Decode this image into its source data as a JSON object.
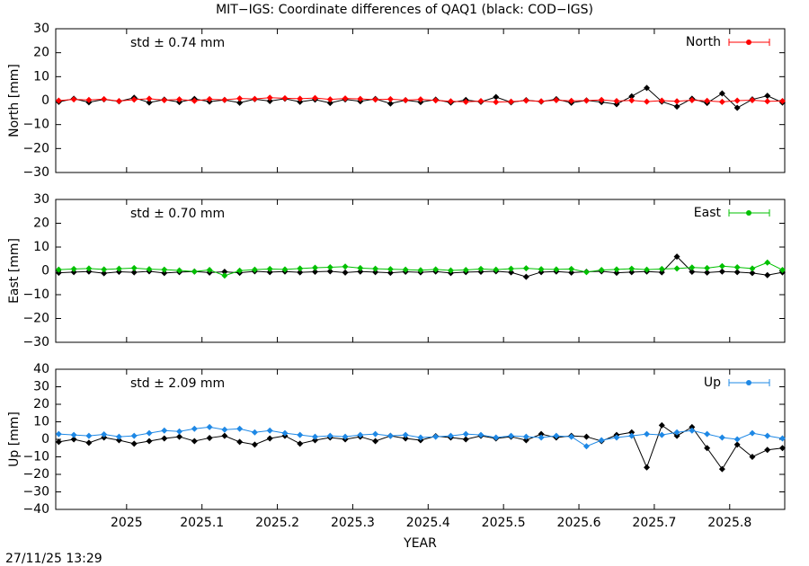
{
  "title": "MIT−IGS: Coordinate differences of QAQ1 (black: COD−IGS)",
  "timestamp": "27/11/25 13:29",
  "chart_data": [
    {
      "type": "line",
      "ylabel": "North [mm]",
      "annotation": "std ± 0.74 mm",
      "annotation_color": "#ff0000",
      "legend": "top-right",
      "x": [
        2024.91,
        2024.93,
        2024.95,
        2024.97,
        2024.99,
        2025.01,
        2025.03,
        2025.05,
        2025.07,
        2025.09,
        2025.11,
        2025.13,
        2025.15,
        2025.17,
        2025.19,
        2025.21,
        2025.23,
        2025.25,
        2025.27,
        2025.29,
        2025.31,
        2025.33,
        2025.35,
        2025.37,
        2025.39,
        2025.41,
        2025.43,
        2025.45,
        2025.47,
        2025.49,
        2025.51,
        2025.53,
        2025.55,
        2025.57,
        2025.59,
        2025.61,
        2025.63,
        2025.65,
        2025.67,
        2025.69,
        2025.71,
        2025.73,
        2025.75,
        2025.77,
        2025.79,
        2025.81,
        2025.83,
        2025.85,
        2025.87
      ],
      "series": [
        {
          "color": "#000000",
          "values": [
            -0.5,
            0.8,
            -0.7,
            0.5,
            -0.3,
            1.2,
            -0.8,
            0.4,
            -0.6,
            0.7,
            -0.4,
            0.3,
            -0.9,
            0.6,
            -0.2,
            0.8,
            -0.5,
            0.4,
            -1.0,
            0.5,
            -0.3,
            0.7,
            -1.2,
            0.2,
            -0.6,
            0.4,
            -0.8,
            0.3,
            -0.5,
            1.5,
            -0.7,
            0.2,
            -0.4,
            0.6,
            -0.9,
            0.1,
            -0.6,
            -1.5,
            1.8,
            5.3,
            -0.4,
            -2.5,
            0.8,
            -1.0,
            3.0,
            -3.0,
            0.5,
            2.0,
            -0.8
          ]
        },
        {
          "name": "North",
          "color": "#ff0000",
          "values": [
            0.0,
            0.5,
            0.3,
            0.6,
            -0.2,
            0.4,
            0.8,
            0.2,
            0.5,
            -0.1,
            0.6,
            0.3,
            0.9,
            0.7,
            1.2,
            1.0,
            0.8,
            1.1,
            0.5,
            0.9,
            0.7,
            0.4,
            0.6,
            0.2,
            0.5,
            0.1,
            -0.3,
            -0.5,
            -0.2,
            -0.6,
            -0.4,
            0.0,
            -0.3,
            0.2,
            -0.1,
            0.0,
            0.3,
            -0.2,
            0.1,
            -0.4,
            0.0,
            -0.3,
            0.2,
            -0.1,
            -0.5,
            0.0,
            0.2,
            -0.3,
            -0.2
          ]
        }
      ],
      "xlim": [
        2024.906,
        2025.873
      ],
      "xticks": [
        2025,
        2025.1,
        2025.2,
        2025.3,
        2025.4,
        2025.5,
        2025.6,
        2025.7,
        2025.8
      ],
      "ylim": [
        -30,
        30
      ],
      "yticks": [
        {
          "value": -30,
          "label": "−30"
        },
        {
          "value": -20,
          "label": "−20"
        },
        {
          "value": -10,
          "label": "−10"
        },
        0,
        10,
        20,
        30
      ]
    },
    {
      "type": "line",
      "ylabel": "East [mm]",
      "annotation": "std ± 0.70 mm",
      "annotation_color": "#00c000",
      "legend": "top-right",
      "x": [
        2024.91,
        2024.93,
        2024.95,
        2024.97,
        2024.99,
        2025.01,
        2025.03,
        2025.05,
        2025.07,
        2025.09,
        2025.11,
        2025.13,
        2025.15,
        2025.17,
        2025.19,
        2025.21,
        2025.23,
        2025.25,
        2025.27,
        2025.29,
        2025.31,
        2025.33,
        2025.35,
        2025.37,
        2025.39,
        2025.41,
        2025.43,
        2025.45,
        2025.47,
        2025.49,
        2025.51,
        2025.53,
        2025.55,
        2025.57,
        2025.59,
        2025.61,
        2025.63,
        2025.65,
        2025.67,
        2025.69,
        2025.71,
        2025.73,
        2025.75,
        2025.77,
        2025.79,
        2025.81,
        2025.83,
        2025.85,
        2025.87
      ],
      "series": [
        {
          "color": "#000000",
          "values": [
            -0.8,
            -0.5,
            -0.3,
            -1.0,
            -0.4,
            -0.6,
            -0.2,
            -0.9,
            -0.5,
            -0.3,
            -0.7,
            -0.4,
            -0.8,
            -0.2,
            -0.5,
            -0.3,
            -0.6,
            -0.4,
            -0.2,
            -0.7,
            -0.3,
            -0.5,
            -0.8,
            -0.4,
            -0.6,
            -0.3,
            -0.9,
            -0.5,
            -0.4,
            -0.2,
            -0.6,
            -2.5,
            -0.5,
            -0.3,
            -0.7,
            -0.4,
            -0.2,
            -0.8,
            -0.5,
            -0.3,
            -0.6,
            6.0,
            -0.4,
            -0.7,
            -0.3,
            -0.5,
            -0.9,
            -1.8,
            -0.6
          ]
        },
        {
          "name": "East",
          "color": "#00c000",
          "values": [
            0.5,
            0.8,
            1.0,
            0.6,
            0.9,
            1.2,
            0.7,
            0.5,
            0.2,
            -0.3,
            0.4,
            -2.0,
            0.1,
            0.5,
            0.8,
            0.6,
            1.0,
            1.3,
            1.5,
            1.8,
            1.2,
            0.9,
            0.7,
            0.5,
            0.3,
            0.6,
            0.2,
            0.4,
            0.8,
            0.5,
            0.9,
            1.1,
            0.7,
            0.6,
            0.8,
            -0.5,
            0.4,
            0.6,
            0.9,
            0.5,
            0.8,
            1.0,
            1.4,
            1.2,
            2.0,
            1.5,
            1.0,
            3.5,
            0.4
          ]
        }
      ],
      "xlim": [
        2024.906,
        2025.873
      ],
      "xticks": [
        2025,
        2025.1,
        2025.2,
        2025.3,
        2025.4,
        2025.5,
        2025.6,
        2025.7,
        2025.8
      ],
      "ylim": [
        -30,
        30
      ],
      "yticks": [
        {
          "value": -30,
          "label": "−30"
        },
        {
          "value": -20,
          "label": "−20"
        },
        {
          "value": -10,
          "label": "−10"
        },
        0,
        10,
        20,
        30
      ]
    },
    {
      "type": "line",
      "ylabel": "Up [mm]",
      "xlabel": "YEAR",
      "annotation": "std ± 2.09 mm",
      "annotation_color": "#1e88e5",
      "legend": "top-right",
      "x": [
        2024.91,
        2024.93,
        2024.95,
        2024.97,
        2024.99,
        2025.01,
        2025.03,
        2025.05,
        2025.07,
        2025.09,
        2025.11,
        2025.13,
        2025.15,
        2025.17,
        2025.19,
        2025.21,
        2025.23,
        2025.25,
        2025.27,
        2025.29,
        2025.31,
        2025.33,
        2025.35,
        2025.37,
        2025.39,
        2025.41,
        2025.43,
        2025.45,
        2025.47,
        2025.49,
        2025.51,
        2025.53,
        2025.55,
        2025.57,
        2025.59,
        2025.61,
        2025.63,
        2025.65,
        2025.67,
        2025.69,
        2025.71,
        2025.73,
        2025.75,
        2025.77,
        2025.79,
        2025.81,
        2025.83,
        2025.85,
        2025.87
      ],
      "series": [
        {
          "color": "#000000",
          "values": [
            -1.5,
            0.0,
            -2.0,
            1.0,
            -0.5,
            -2.5,
            -1.0,
            0.5,
            1.5,
            -1.0,
            0.8,
            2.0,
            -1.5,
            -3.0,
            0.5,
            2.0,
            -2.5,
            -0.5,
            1.0,
            0.0,
            1.5,
            -1.0,
            2.0,
            0.5,
            -0.5,
            1.8,
            1.0,
            0.0,
            2.0,
            0.5,
            1.5,
            -0.5,
            3.0,
            1.0,
            2.0,
            1.5,
            -1.0,
            2.5,
            4.0,
            -16.0,
            8.0,
            2.0,
            7.0,
            -5.0,
            -17.0,
            -3.0,
            -10.0,
            -6.0,
            -5.0
          ]
        },
        {
          "name": "Up",
          "color": "#1e88e5",
          "values": [
            3.0,
            2.5,
            2.0,
            2.8,
            1.5,
            2.0,
            3.5,
            5.0,
            4.5,
            6.0,
            7.0,
            5.5,
            6.0,
            4.0,
            5.0,
            3.5,
            2.5,
            1.5,
            2.0,
            1.5,
            2.5,
            3.0,
            2.0,
            2.5,
            1.0,
            1.5,
            2.0,
            3.0,
            2.5,
            1.0,
            2.0,
            1.5,
            1.0,
            2.0,
            1.5,
            -4.0,
            -0.5,
            1.0,
            2.0,
            3.0,
            2.5,
            4.0,
            5.0,
            3.0,
            1.0,
            0.0,
            3.5,
            2.0,
            0.5
          ]
        }
      ],
      "xlim": [
        2024.906,
        2025.873
      ],
      "xticks": [
        2025,
        2025.1,
        2025.2,
        2025.3,
        2025.4,
        2025.5,
        2025.6,
        2025.7,
        2025.8
      ],
      "ylim": [
        -40,
        40
      ],
      "yticks": [
        {
          "value": -40,
          "label": "−40"
        },
        {
          "value": -30,
          "label": "−30"
        },
        {
          "value": -20,
          "label": "−20"
        },
        {
          "value": -10,
          "label": "−10"
        },
        0,
        10,
        20,
        30,
        40
      ]
    }
  ]
}
